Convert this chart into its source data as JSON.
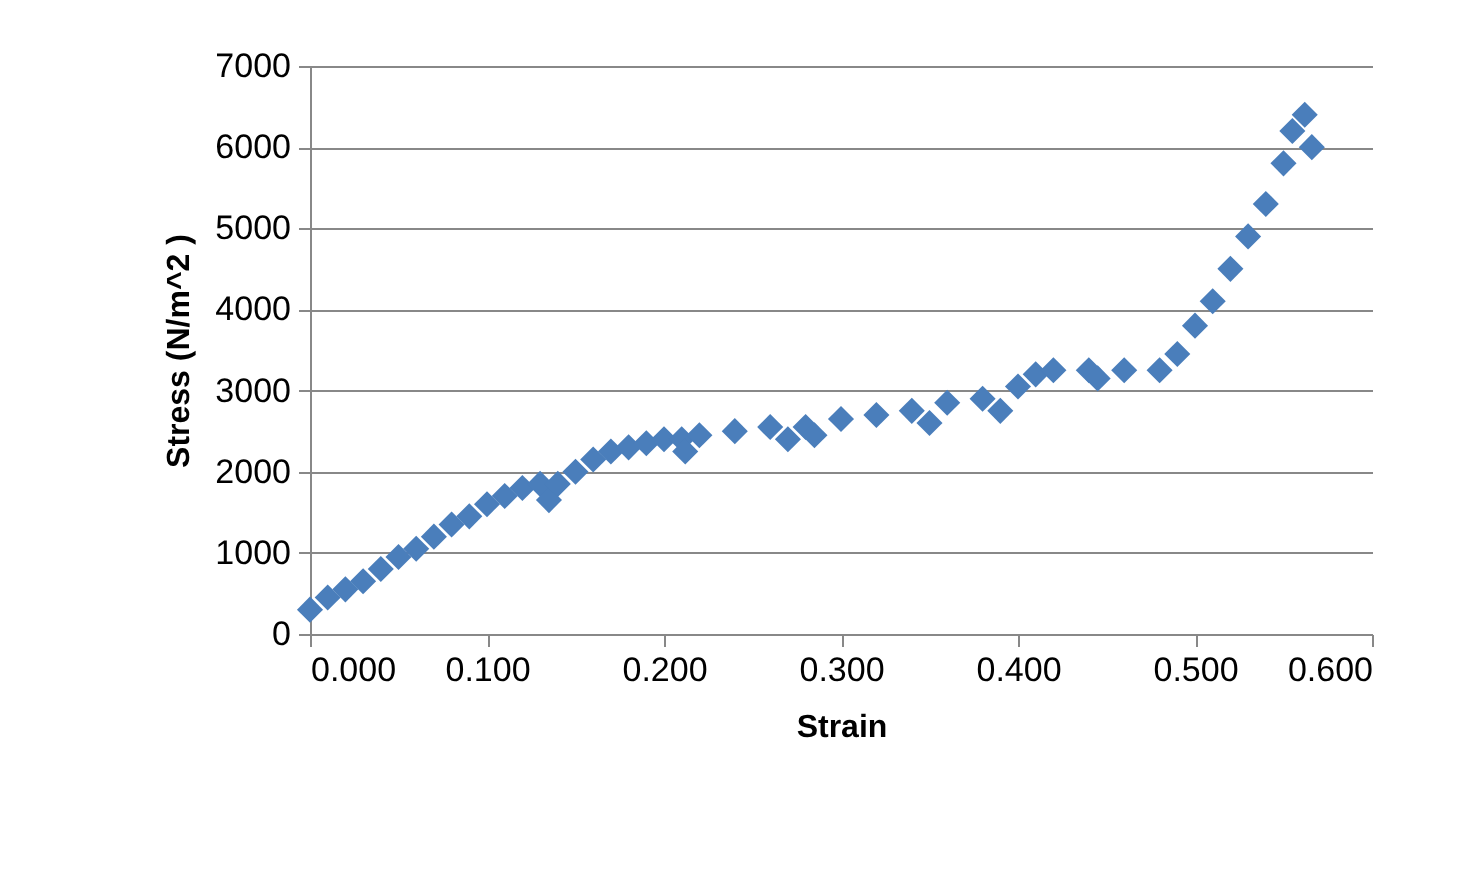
{
  "chart_data": {
    "type": "scatter",
    "xlabel": "Strain",
    "ylabel": "Stress (N/m^2 )",
    "x": [
      0.0,
      0.01,
      0.02,
      0.03,
      0.04,
      0.05,
      0.06,
      0.07,
      0.08,
      0.09,
      0.1,
      0.11,
      0.12,
      0.13,
      0.135,
      0.14,
      0.15,
      0.16,
      0.17,
      0.18,
      0.19,
      0.2,
      0.21,
      0.212,
      0.22,
      0.24,
      0.26,
      0.27,
      0.28,
      0.285,
      0.3,
      0.32,
      0.34,
      0.35,
      0.36,
      0.38,
      0.39,
      0.4,
      0.41,
      0.42,
      0.44,
      0.445,
      0.46,
      0.48,
      0.49,
      0.5,
      0.51,
      0.52,
      0.53,
      0.54,
      0.55,
      0.555,
      0.562,
      0.566
    ],
    "series": [
      {
        "color": "#4a7ebb",
        "values": [
          300,
          450,
          550,
          650,
          800,
          950,
          1050,
          1200,
          1350,
          1450,
          1600,
          1700,
          1800,
          1850,
          1650,
          1850,
          2000,
          2150,
          2250,
          2300,
          2350,
          2400,
          2400,
          2250,
          2450,
          2500,
          2550,
          2400,
          2550,
          2450,
          2650,
          2700,
          2750,
          2600,
          2850,
          2900,
          2750,
          3050,
          3200,
          3250,
          3250,
          3150,
          3250,
          3250,
          3450,
          3800,
          4100,
          4500,
          4900,
          5300,
          5800,
          6200,
          6400,
          6000
        ]
      }
    ],
    "xlim": [
      0,
      0.6
    ],
    "xticks": [
      {
        "value": 0,
        "label": "0.000"
      },
      {
        "value": 0.1,
        "label": "0.100"
      },
      {
        "value": 0.2,
        "label": "0.200"
      },
      {
        "value": 0.3,
        "label": "0.300"
      },
      {
        "value": 0.4,
        "label": "0.400"
      },
      {
        "value": 0.5,
        "label": "0.500"
      },
      {
        "value": 0.6,
        "label": "0.600"
      }
    ],
    "ylim": [
      0,
      7000
    ],
    "yticks": [
      0,
      1000,
      2000,
      3000,
      4000,
      5000,
      6000,
      7000
    ],
    "grid": "y",
    "marker": "diamond"
  }
}
